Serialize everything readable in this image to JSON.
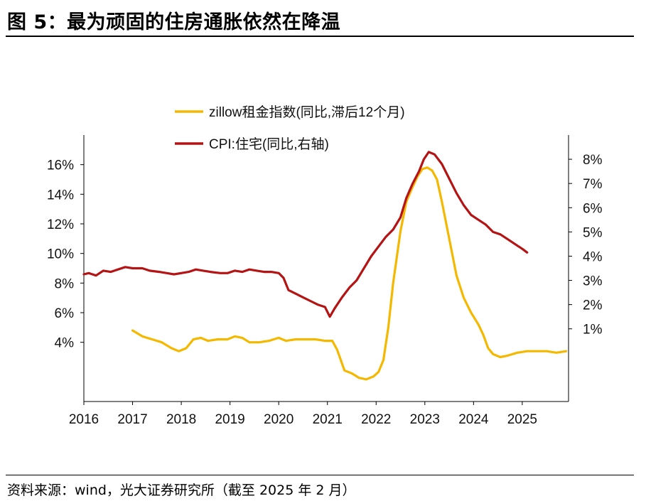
{
  "title": "图 5：最为顽固的住房通胀依然在降温",
  "source": "资料来源：wind，光大证券研究所（截至 2025 年 2 月）",
  "chart_data": {
    "type": "line",
    "title": "",
    "xlabel": "",
    "ylabel": "",
    "y_left": {
      "lim": [
        0,
        18
      ],
      "ticks": [
        4,
        6,
        8,
        10,
        12,
        14,
        16
      ],
      "tick_labels": [
        "4%",
        "6%",
        "8%",
        "10%",
        "12%",
        "14%",
        "16%"
      ]
    },
    "y_right": {
      "lim": [
        -2,
        9
      ],
      "ticks": [
        1,
        2,
        3,
        4,
        5,
        6,
        7,
        8
      ],
      "tick_labels": [
        "1%",
        "2%",
        "3%",
        "4%",
        "5%",
        "6%",
        "7%",
        "8%"
      ]
    },
    "x_ticks": [
      2016,
      2017,
      2018,
      2019,
      2020,
      2021,
      2022,
      2023,
      2024,
      2025
    ],
    "x_tick_labels": [
      "2016",
      "2017",
      "2018",
      "2019",
      "2020",
      "2021",
      "2022",
      "2023",
      "2024",
      "2025"
    ],
    "x_range": [
      2016,
      2025.95
    ],
    "legend_position": "top",
    "grid": false,
    "series": [
      {
        "name": "zillow租金指数(同比,滞后12个月)",
        "axis": "left",
        "color": "#F5B800",
        "points": [
          [
            2017.0,
            4.8
          ],
          [
            2017.2,
            4.4
          ],
          [
            2017.4,
            4.2
          ],
          [
            2017.6,
            4.0
          ],
          [
            2017.8,
            3.6
          ],
          [
            2017.95,
            3.4
          ],
          [
            2018.1,
            3.6
          ],
          [
            2018.25,
            4.2
          ],
          [
            2018.4,
            4.3
          ],
          [
            2018.55,
            4.1
          ],
          [
            2018.75,
            4.2
          ],
          [
            2018.95,
            4.2
          ],
          [
            2019.1,
            4.4
          ],
          [
            2019.25,
            4.3
          ],
          [
            2019.4,
            4.0
          ],
          [
            2019.6,
            4.0
          ],
          [
            2019.8,
            4.1
          ],
          [
            2020.0,
            4.3
          ],
          [
            2020.15,
            4.1
          ],
          [
            2020.35,
            4.2
          ],
          [
            2020.55,
            4.2
          ],
          [
            2020.75,
            4.2
          ],
          [
            2020.95,
            4.1
          ],
          [
            2021.1,
            4.1
          ],
          [
            2021.2,
            3.5
          ],
          [
            2021.35,
            2.1
          ],
          [
            2021.5,
            1.9
          ],
          [
            2021.65,
            1.6
          ],
          [
            2021.8,
            1.5
          ],
          [
            2021.95,
            1.7
          ],
          [
            2022.05,
            2.0
          ],
          [
            2022.15,
            2.8
          ],
          [
            2022.25,
            5.0
          ],
          [
            2022.35,
            8.0
          ],
          [
            2022.5,
            11.5
          ],
          [
            2022.62,
            13.5
          ],
          [
            2022.75,
            14.5
          ],
          [
            2022.85,
            15.2
          ],
          [
            2022.95,
            15.7
          ],
          [
            2023.05,
            15.8
          ],
          [
            2023.15,
            15.6
          ],
          [
            2023.25,
            15.0
          ],
          [
            2023.35,
            13.5
          ],
          [
            2023.5,
            11.0
          ],
          [
            2023.65,
            8.5
          ],
          [
            2023.8,
            7.0
          ],
          [
            2023.95,
            6.0
          ],
          [
            2024.1,
            5.2
          ],
          [
            2024.2,
            4.5
          ],
          [
            2024.3,
            3.6
          ],
          [
            2024.4,
            3.2
          ],
          [
            2024.55,
            3.0
          ],
          [
            2024.7,
            3.1
          ],
          [
            2024.9,
            3.3
          ],
          [
            2025.1,
            3.4
          ],
          [
            2025.3,
            3.4
          ],
          [
            2025.5,
            3.4
          ],
          [
            2025.7,
            3.3
          ],
          [
            2025.9,
            3.4
          ]
        ]
      },
      {
        "name": "CPI:住宅(同比,右轴)",
        "axis": "right",
        "color": "#B41414",
        "points": [
          [
            2016.0,
            3.25
          ],
          [
            2016.1,
            3.3
          ],
          [
            2016.25,
            3.2
          ],
          [
            2016.4,
            3.4
          ],
          [
            2016.55,
            3.35
          ],
          [
            2016.7,
            3.45
          ],
          [
            2016.85,
            3.55
          ],
          [
            2017.0,
            3.5
          ],
          [
            2017.2,
            3.5
          ],
          [
            2017.35,
            3.4
          ],
          [
            2017.55,
            3.35
          ],
          [
            2017.7,
            3.3
          ],
          [
            2017.85,
            3.25
          ],
          [
            2018.0,
            3.3
          ],
          [
            2018.15,
            3.35
          ],
          [
            2018.3,
            3.45
          ],
          [
            2018.45,
            3.4
          ],
          [
            2018.6,
            3.35
          ],
          [
            2018.8,
            3.3
          ],
          [
            2018.95,
            3.3
          ],
          [
            2019.1,
            3.4
          ],
          [
            2019.25,
            3.35
          ],
          [
            2019.4,
            3.45
          ],
          [
            2019.55,
            3.4
          ],
          [
            2019.7,
            3.35
          ],
          [
            2019.85,
            3.35
          ],
          [
            2020.0,
            3.3
          ],
          [
            2020.1,
            3.1
          ],
          [
            2020.2,
            2.6
          ],
          [
            2020.35,
            2.45
          ],
          [
            2020.5,
            2.3
          ],
          [
            2020.65,
            2.15
          ],
          [
            2020.8,
            2.0
          ],
          [
            2020.95,
            1.9
          ],
          [
            2021.05,
            1.5
          ],
          [
            2021.15,
            1.85
          ],
          [
            2021.3,
            2.3
          ],
          [
            2021.45,
            2.7
          ],
          [
            2021.6,
            3.0
          ],
          [
            2021.75,
            3.5
          ],
          [
            2021.9,
            4.0
          ],
          [
            2022.05,
            4.4
          ],
          [
            2022.2,
            4.8
          ],
          [
            2022.35,
            5.1
          ],
          [
            2022.5,
            5.6
          ],
          [
            2022.62,
            6.4
          ],
          [
            2022.75,
            7.0
          ],
          [
            2022.88,
            7.5
          ],
          [
            2022.98,
            8.0
          ],
          [
            2023.08,
            8.3
          ],
          [
            2023.2,
            8.2
          ],
          [
            2023.35,
            7.8
          ],
          [
            2023.5,
            7.2
          ],
          [
            2023.65,
            6.6
          ],
          [
            2023.8,
            6.1
          ],
          [
            2023.95,
            5.7
          ],
          [
            2024.1,
            5.5
          ],
          [
            2024.25,
            5.3
          ],
          [
            2024.4,
            5.0
          ],
          [
            2024.55,
            4.9
          ],
          [
            2024.7,
            4.7
          ],
          [
            2024.85,
            4.5
          ],
          [
            2025.0,
            4.3
          ],
          [
            2025.1,
            4.15
          ]
        ]
      }
    ]
  }
}
